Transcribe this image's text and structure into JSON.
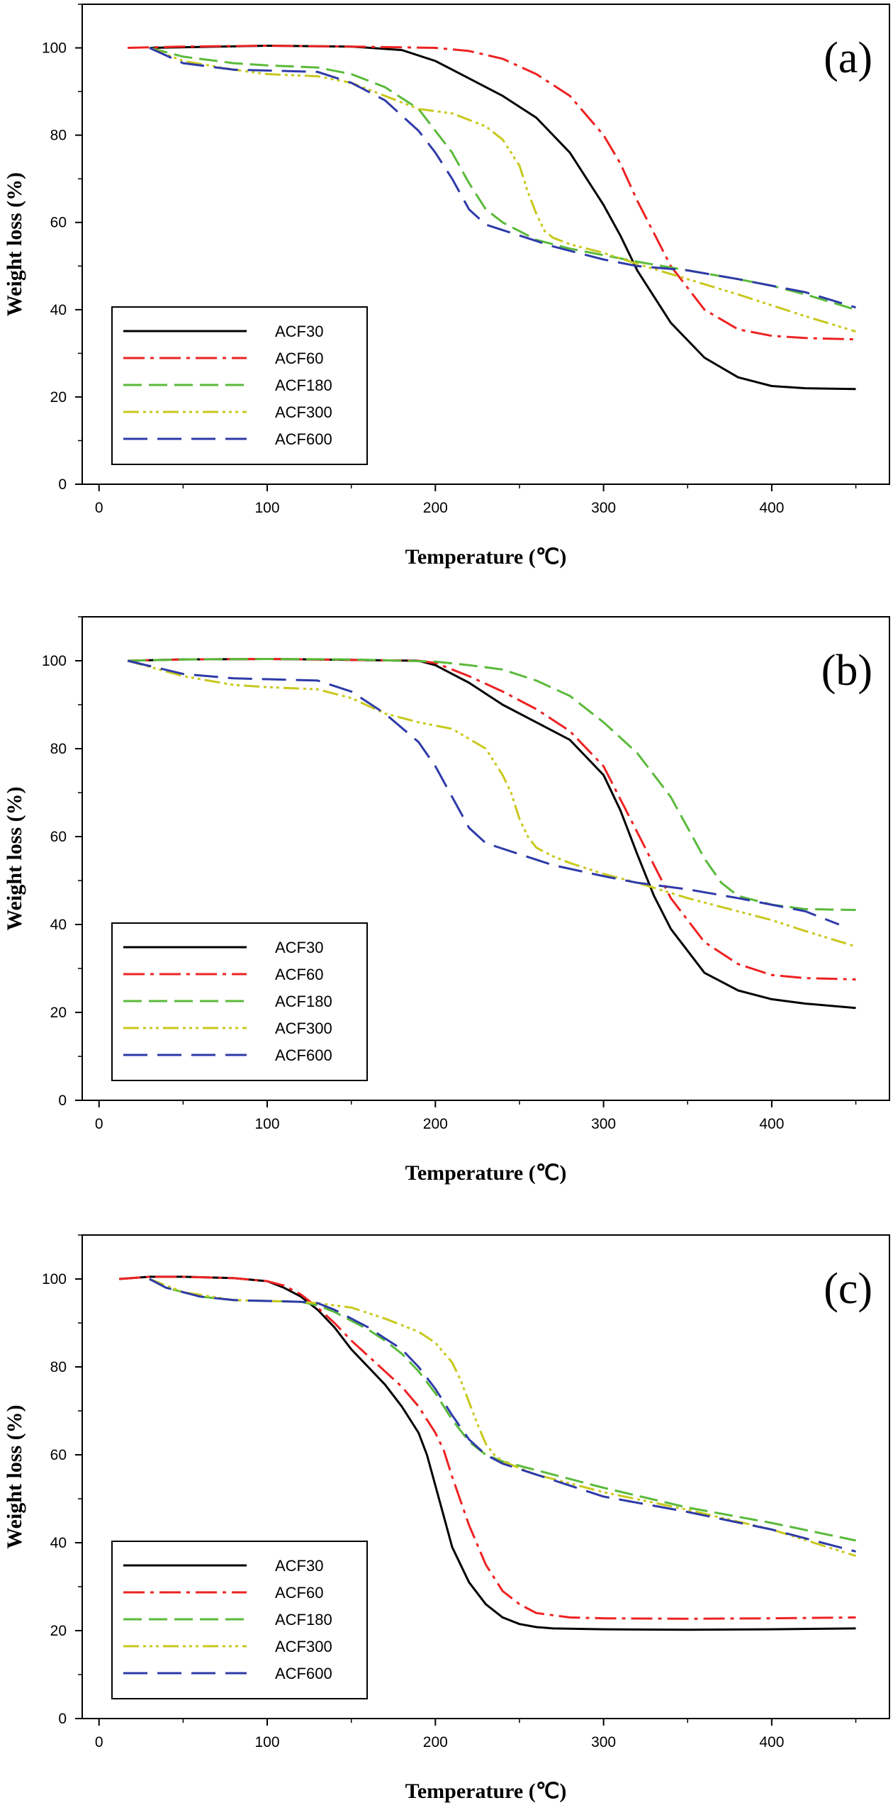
{
  "figure": {
    "legend": [
      "ACF30",
      "ACF60",
      "ACF180",
      "ACF300",
      "ACF600"
    ],
    "series_colors": {
      "ACF30": "#000000",
      "ACF60": "#ee2222",
      "ACF180": "#5aba3a",
      "ACF300": "#c8c81e",
      "ACF600": "#2e3aa8"
    }
  },
  "chart_data": [
    {
      "type": "line",
      "panel_label": "(a)",
      "xlabel": "Temperature (℃)",
      "ylabel": "Weight loss (%)",
      "xlim": [
        -10,
        470
      ],
      "ylim": [
        0,
        110
      ],
      "xticks": [
        "0",
        "100",
        "200",
        "300",
        "400"
      ],
      "yticks": [
        "0",
        "20",
        "40",
        "60",
        "80",
        "100"
      ],
      "legend_position": "bottom-left",
      "series": [
        {
          "name": "ACF30",
          "x": [
            30,
            100,
            150,
            180,
            200,
            220,
            240,
            260,
            280,
            300,
            310,
            320,
            340,
            360,
            380,
            400,
            420,
            450
          ],
          "y": [
            100,
            100.5,
            100.3,
            99.5,
            97,
            93,
            89,
            84,
            76,
            64,
            57,
            49,
            37,
            29,
            24.5,
            22.5,
            22,
            21.8
          ]
        },
        {
          "name": "ACF60",
          "x": [
            17,
            50,
            100,
            150,
            200,
            220,
            240,
            260,
            280,
            300,
            310,
            320,
            340,
            360,
            380,
            400,
            420,
            450
          ],
          "y": [
            100,
            100.3,
            100.5,
            100.3,
            100,
            99.3,
            97.5,
            94,
            89,
            80,
            73.5,
            65,
            50,
            40,
            35.5,
            34,
            33.5,
            33.2
          ]
        },
        {
          "name": "ACF180",
          "x": [
            30,
            50,
            80,
            100,
            130,
            150,
            170,
            190,
            210,
            220,
            230,
            240,
            260,
            280,
            300,
            320,
            350,
            380,
            400,
            420,
            450
          ],
          "y": [
            100,
            98,
            96.5,
            96,
            95.5,
            94,
            91,
            86,
            76,
            69,
            63,
            60,
            56,
            54,
            52.5,
            51,
            49,
            47,
            45.5,
            43.5,
            40
          ]
        },
        {
          "name": "ACF300",
          "x": [
            30,
            50,
            80,
            100,
            130,
            150,
            170,
            190,
            210,
            230,
            240,
            250,
            255,
            260,
            265,
            270,
            280,
            300,
            320,
            350,
            380,
            400,
            420,
            450
          ],
          "y": [
            100,
            97,
            95,
            94,
            93.5,
            92,
            89,
            86,
            85,
            82,
            79,
            73,
            67,
            62,
            58,
            56.5,
            55,
            53,
            50.5,
            47,
            43.5,
            41,
            38.5,
            35
          ]
        },
        {
          "name": "ACF600",
          "x": [
            30,
            50,
            80,
            100,
            130,
            150,
            170,
            190,
            200,
            210,
            220,
            230,
            250,
            270,
            300,
            320,
            350,
            380,
            400,
            420,
            450
          ],
          "y": [
            100,
            96.5,
            95,
            94.8,
            94.5,
            92,
            88,
            81,
            76,
            70,
            63,
            59.5,
            57,
            54.5,
            51.5,
            50,
            49,
            47,
            45.5,
            44,
            40.5
          ]
        }
      ]
    },
    {
      "type": "line",
      "panel_label": "(b)",
      "xlabel": "Temperature (℃)",
      "ylabel": "Weight loss (%)",
      "xlim": [
        -10,
        470
      ],
      "ylim": [
        0,
        110
      ],
      "xticks": [
        "0",
        "100",
        "200",
        "300",
        "400"
      ],
      "yticks": [
        "0",
        "20",
        "40",
        "60",
        "80",
        "100"
      ],
      "legend_position": "bottom-left",
      "series": [
        {
          "name": "ACF30",
          "x": [
            17,
            50,
            100,
            150,
            190,
            200,
            220,
            240,
            260,
            280,
            300,
            310,
            320,
            330,
            340,
            360,
            380,
            400,
            420,
            450
          ],
          "y": [
            100,
            100.3,
            100.4,
            100.2,
            100,
            99,
            95,
            90,
            86,
            82,
            74,
            66,
            56,
            46.5,
            39,
            29,
            25,
            23,
            22,
            21
          ]
        },
        {
          "name": "ACF60",
          "x": [
            17,
            50,
            100,
            150,
            190,
            200,
            220,
            240,
            260,
            280,
            300,
            320,
            340,
            360,
            380,
            400,
            420,
            450
          ],
          "y": [
            100,
            100.3,
            100.4,
            100.2,
            100,
            99.5,
            96.5,
            93,
            89,
            84,
            76,
            61,
            46,
            36,
            31,
            28.5,
            27.8,
            27.5
          ]
        },
        {
          "name": "ACF180",
          "x": [
            17,
            50,
            100,
            150,
            200,
            220,
            240,
            260,
            280,
            300,
            320,
            340,
            350,
            360,
            370,
            380,
            400,
            420,
            450
          ],
          "y": [
            100,
            100.3,
            100.4,
            100.3,
            99.8,
            99,
            98,
            95.5,
            92,
            86,
            79,
            69,
            62,
            55,
            49.5,
            46.5,
            44.5,
            43.5,
            43.3
          ]
        },
        {
          "name": "ACF300",
          "x": [
            17,
            50,
            80,
            100,
            130,
            150,
            170,
            190,
            210,
            230,
            240,
            245,
            250,
            255,
            260,
            270,
            280,
            300,
            320,
            350,
            380,
            400,
            420,
            450
          ],
          "y": [
            100,
            96.5,
            94.5,
            94,
            93.5,
            91.5,
            88,
            86,
            84.5,
            80,
            74,
            70,
            64,
            60,
            57.5,
            55.5,
            54,
            51.5,
            49.5,
            46,
            43,
            41,
            38.5,
            35
          ]
        },
        {
          "name": "ACF600",
          "x": [
            17,
            50,
            80,
            100,
            130,
            150,
            170,
            190,
            200,
            210,
            220,
            230,
            250,
            270,
            300,
            320,
            350,
            380,
            400,
            420,
            440
          ],
          "y": [
            100,
            97,
            96,
            95.8,
            95.5,
            93,
            88,
            81.5,
            76,
            69,
            62,
            58.5,
            56,
            53.5,
            51,
            49.5,
            48,
            46,
            44.5,
            43,
            40
          ]
        }
      ]
    },
    {
      "type": "line",
      "panel_label": "(c)",
      "xlabel": "Temperature (℃)",
      "ylabel": "Weight loss (%)",
      "xlim": [
        -10,
        470
      ],
      "ylim": [
        0,
        110
      ],
      "xticks": [
        "0",
        "100",
        "200",
        "300",
        "400"
      ],
      "yticks": [
        "0",
        "20",
        "40",
        "60",
        "80",
        "100"
      ],
      "legend_position": "bottom-left",
      "series": [
        {
          "name": "ACF30",
          "x": [
            12,
            30,
            50,
            80,
            100,
            110,
            120,
            130,
            140,
            150,
            160,
            170,
            180,
            190,
            195,
            200,
            205,
            210,
            220,
            230,
            240,
            250,
            260,
            270,
            300,
            350,
            400,
            450
          ],
          "y": [
            100,
            100.5,
            100.5,
            100.2,
            99.5,
            98,
            96,
            93,
            89,
            84,
            80,
            76,
            71,
            65,
            60,
            53,
            46,
            39,
            31,
            26,
            23,
            21.5,
            20.8,
            20.5,
            20.3,
            20.2,
            20.3,
            20.5
          ]
        },
        {
          "name": "ACF60",
          "x": [
            12,
            30,
            50,
            80,
            100,
            110,
            120,
            130,
            140,
            150,
            160,
            170,
            180,
            190,
            200,
            205,
            210,
            215,
            220,
            230,
            240,
            250,
            260,
            280,
            300,
            350,
            400,
            450
          ],
          "y": [
            100,
            100.5,
            100.5,
            100.2,
            99.5,
            98.5,
            96.5,
            93.5,
            90,
            86,
            82.5,
            79,
            75.5,
            71,
            65,
            61,
            55,
            49.5,
            44,
            35,
            29,
            26,
            24,
            23,
            22.8,
            22.7,
            22.8,
            23
          ]
        },
        {
          "name": "ACF180",
          "x": [
            30,
            40,
            50,
            60,
            80,
            100,
            120,
            130,
            140,
            150,
            160,
            170,
            180,
            190,
            200,
            210,
            220,
            230,
            240,
            260,
            280,
            300,
            350,
            400,
            450
          ],
          "y": [
            100,
            98,
            97,
            96,
            95.2,
            95,
            94.8,
            94,
            92.5,
            90.5,
            88.5,
            86,
            83,
            79,
            74,
            68,
            63,
            60,
            58.5,
            56.5,
            54.5,
            52.5,
            48,
            44.5,
            40.5
          ]
        },
        {
          "name": "ACF300",
          "x": [
            30,
            50,
            80,
            100,
            120,
            130,
            140,
            150,
            170,
            190,
            200,
            210,
            215,
            220,
            225,
            230,
            235,
            240,
            250,
            260,
            280,
            300,
            350,
            400,
            450
          ],
          "y": [
            100,
            97,
            95.2,
            95,
            94.8,
            94.5,
            94,
            93.5,
            91,
            88,
            85.5,
            81,
            77,
            72,
            67,
            62.5,
            60,
            58.5,
            57,
            55.5,
            53.5,
            51.5,
            47.5,
            43,
            37
          ]
        },
        {
          "name": "ACF600",
          "x": [
            30,
            40,
            50,
            60,
            80,
            100,
            120,
            130,
            140,
            150,
            160,
            170,
            180,
            190,
            200,
            210,
            220,
            230,
            240,
            260,
            280,
            300,
            350,
            400,
            450
          ],
          "y": [
            100,
            98,
            97,
            96,
            95.2,
            95,
            94.8,
            94.5,
            93,
            91,
            89,
            86.5,
            84,
            80,
            75,
            69,
            63.5,
            60,
            58,
            55.5,
            53,
            50.5,
            47,
            43,
            38
          ]
        }
      ]
    }
  ]
}
